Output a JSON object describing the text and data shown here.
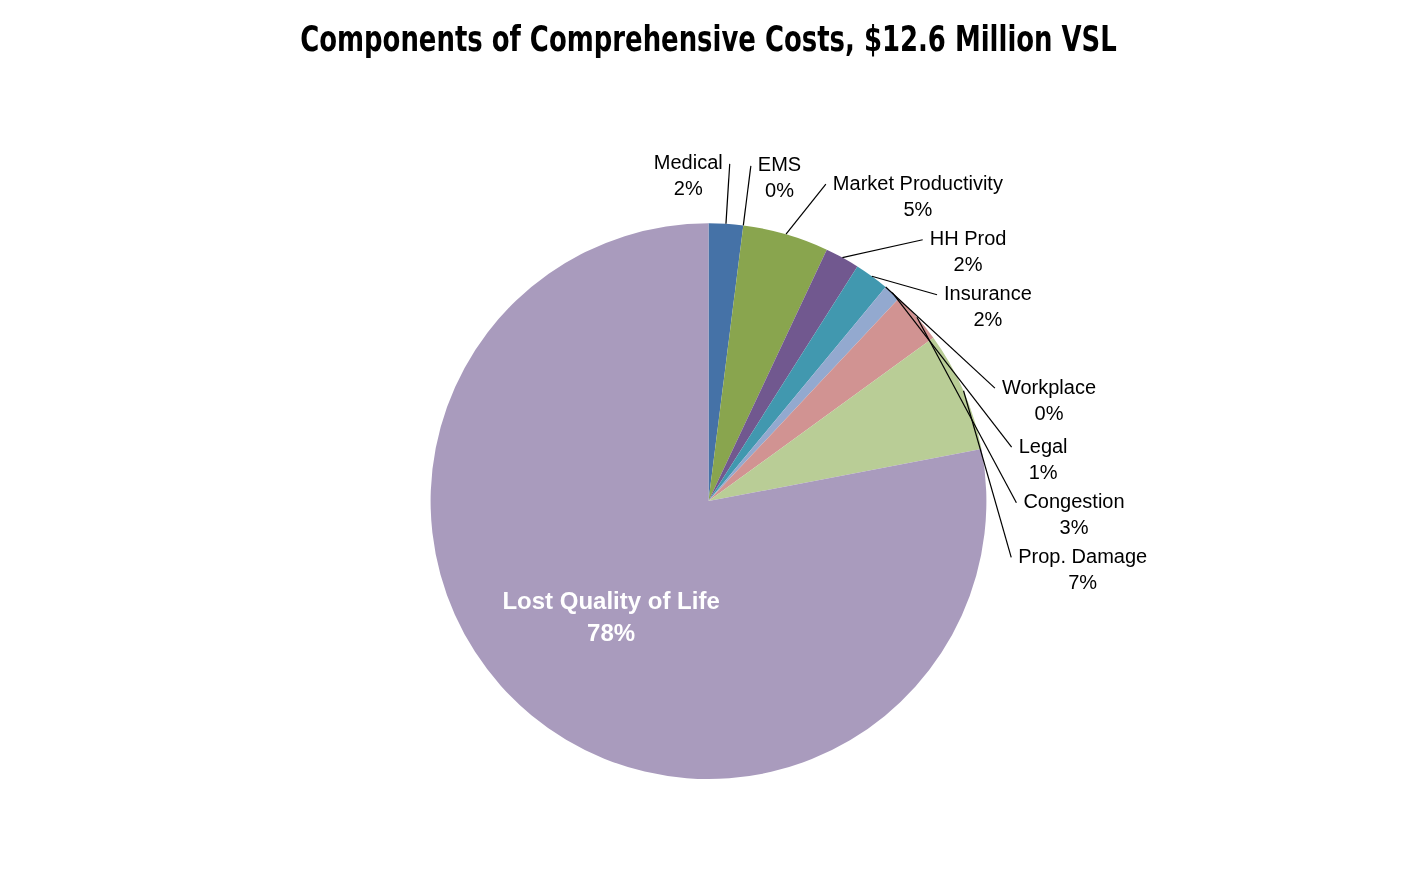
{
  "chart_data": {
    "type": "pie",
    "title": "Components of Comprehensive Costs, $12.6 Million VSL",
    "categories": [
      "Medical",
      "EMS",
      "Market Productivity",
      "HH Prod",
      "Insurance",
      "Workplace",
      "Legal",
      "Congestion",
      "Prop. Damage",
      "Lost Quality of Life"
    ],
    "values": [
      2,
      0,
      5,
      2,
      2,
      0,
      1,
      3,
      7,
      78
    ],
    "value_labels": [
      "2%",
      "0%",
      "5%",
      "2%",
      "2%",
      "0%",
      "1%",
      "3%",
      "7%",
      "78%"
    ],
    "colors": [
      "#4572a7",
      "#c0504d",
      "#89a54e",
      "#71588f",
      "#4198af",
      "#db843d",
      "#93a9cf",
      "#d19392",
      "#b9cd96",
      "#a99bbd"
    ],
    "legend": false
  }
}
